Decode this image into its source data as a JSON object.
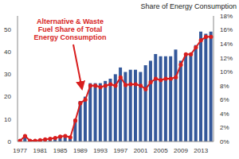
{
  "chart_data": {
    "type": "bar",
    "y2label": "Share of Energy Consumption",
    "annotations": [
      "Alternative & Waste Fuel Share of Total Energy Consumption"
    ],
    "categories": [
      "1977",
      null,
      null,
      null,
      "1981",
      null,
      null,
      null,
      "1985",
      null,
      null,
      null,
      "1989",
      null,
      null,
      null,
      "1993",
      null,
      null,
      null,
      "1997",
      null,
      null,
      null,
      "2001",
      null,
      null,
      null,
      "2005",
      null,
      null,
      null,
      "2009",
      null,
      null,
      null,
      "2013",
      null,
      null
    ],
    "series": [
      {
        "type": "bar",
        "color": "#34589a",
        "values": [
          0.3,
          2.5,
          0.5,
          0.5,
          0.5,
          1,
          1,
          1.5,
          2,
          2.5,
          2.5,
          10,
          18,
          20,
          26,
          26,
          26,
          27,
          28,
          30,
          33,
          31,
          32,
          32,
          31,
          34,
          36,
          39,
          38,
          38,
          38,
          41,
          36,
          39,
          39,
          43,
          49,
          48,
          49
        ]
      },
      {
        "type": "line",
        "axis": "y2",
        "color": "#d81e1e",
        "marker": "circle",
        "line_style": "solid",
        "values": [
          0.1,
          0.8,
          0.1,
          0.1,
          0.2,
          0.3,
          0.4,
          0.5,
          0.7,
          0.8,
          0.6,
          3,
          5.5,
          6,
          8,
          8,
          7.8,
          8,
          8.2,
          8,
          9.2,
          8.1,
          8.2,
          8.2,
          8,
          7.5,
          8.5,
          9,
          8.8,
          9,
          9,
          9.2,
          11,
          12.5,
          12.5,
          13.5,
          14.5,
          15,
          15
        ]
      }
    ],
    "ylim": [
      0,
      56
    ],
    "yticks": [
      0,
      10,
      20,
      30,
      40,
      50
    ],
    "y2lim": [
      0,
      18
    ],
    "y2ticks": [
      {
        "value": 0,
        "label": "0%"
      },
      {
        "value": 2,
        "label": "2%"
      },
      {
        "value": 4,
        "label": "4%"
      },
      {
        "value": 6,
        "label": "6%"
      },
      {
        "value": 8,
        "label": "8%"
      },
      {
        "value": 10,
        "label": "10%"
      },
      {
        "value": 12,
        "label": "12%"
      },
      {
        "value": 14,
        "label": "14%"
      },
      {
        "value": 16,
        "label": "16%"
      },
      {
        "value": 18,
        "label": "18%"
      }
    ],
    "grid": false
  }
}
